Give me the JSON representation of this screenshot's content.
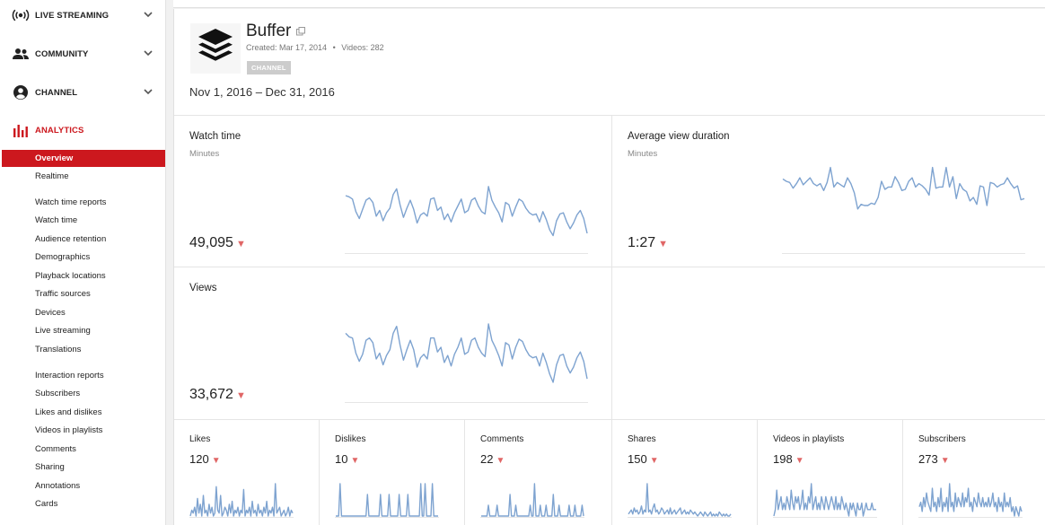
{
  "sidebar": {
    "sections": [
      {
        "label": "LIVE STREAMING",
        "icon": "live-streaming-icon"
      },
      {
        "label": "COMMUNITY",
        "icon": "community-icon"
      },
      {
        "label": "CHANNEL",
        "icon": "channel-icon"
      },
      {
        "label": "ANALYTICS",
        "icon": "analytics-icon",
        "active": true
      }
    ],
    "items": [
      "Overview",
      "Realtime"
    ],
    "watch_time_group": {
      "title": "Watch time reports",
      "items": [
        "Watch time",
        "Audience retention",
        "Demographics",
        "Playback locations",
        "Traffic sources",
        "Devices",
        "Live streaming",
        "Translations"
      ]
    },
    "interaction_group": {
      "title": "Interaction reports",
      "items": [
        "Subscribers",
        "Likes and dislikes",
        "Videos in playlists",
        "Comments",
        "Sharing",
        "Annotations",
        "Cards"
      ]
    }
  },
  "channel": {
    "name": "Buffer",
    "created": "Created: Mar 17, 2014",
    "separator": "•",
    "videos": "Videos: 282",
    "badge": "CHANNEL"
  },
  "date_range": "Nov 1, 2016 – Dec 31, 2016",
  "metrics": {
    "watch_time": {
      "title": "Watch time",
      "sub": "Minutes",
      "value": "49,095",
      "trend": "down",
      "series": [
        44,
        43,
        41,
        30,
        24,
        32,
        40,
        42,
        38,
        26,
        31,
        22,
        29,
        33,
        45,
        50,
        36,
        25,
        33,
        40,
        32,
        20,
        27,
        29,
        26,
        41,
        42,
        31,
        34,
        23,
        28,
        21,
        29,
        35,
        41,
        29,
        31,
        40,
        42,
        35,
        30,
        28,
        52,
        40,
        34,
        29,
        21,
        38,
        36,
        26,
        34,
        41,
        39,
        33,
        29,
        27,
        28,
        21,
        30,
        23,
        14,
        9,
        22,
        28,
        29,
        21,
        15,
        20,
        27,
        31,
        24,
        11
      ]
    },
    "avg_view_duration": {
      "title": "Average view duration",
      "sub": "Minutes",
      "value": "1:27",
      "trend": "down",
      "series": [
        60,
        58,
        57,
        52,
        56,
        61,
        55,
        58,
        61,
        56,
        54,
        56,
        50,
        57,
        70,
        53,
        57,
        55,
        53,
        61,
        56,
        48,
        34,
        38,
        37,
        37,
        39,
        38,
        44,
        58,
        51,
        53,
        53,
        62,
        57,
        50,
        51,
        58,
        61,
        53,
        56,
        54,
        51,
        46,
        70,
        52,
        53,
        53,
        70,
        53,
        62,
        43,
        56,
        51,
        49,
        41,
        44,
        38,
        54,
        53,
        37,
        57,
        56,
        53,
        55,
        56,
        61,
        56,
        52,
        54,
        42,
        43
      ]
    },
    "views": {
      "title": "Views",
      "sub": "",
      "value": "33,672",
      "trend": "down",
      "series": [
        52,
        49,
        48,
        35,
        28,
        34,
        46,
        48,
        44,
        30,
        35,
        25,
        33,
        38,
        52,
        58,
        42,
        29,
        38,
        46,
        38,
        23,
        31,
        34,
        30,
        48,
        48,
        36,
        40,
        27,
        33,
        24,
        34,
        40,
        48,
        34,
        36,
        46,
        48,
        40,
        35,
        32,
        60,
        46,
        40,
        33,
        24,
        44,
        42,
        30,
        40,
        47,
        45,
        38,
        33,
        31,
        32,
        24,
        35,
        27,
        17,
        10,
        25,
        33,
        34,
        24,
        18,
        23,
        31,
        36,
        28,
        13
      ]
    }
  },
  "small_metrics": [
    {
      "title": "Likes",
      "value": "120",
      "trend": "down",
      "series": [
        2,
        4,
        3,
        5,
        2,
        8,
        3,
        6,
        2,
        9,
        3,
        4,
        2,
        6,
        3,
        5,
        2,
        3,
        12,
        4,
        3,
        9,
        2,
        3,
        5,
        4,
        2,
        6,
        3,
        7,
        2,
        4,
        3,
        5,
        2,
        4,
        3,
        11,
        2,
        4,
        3,
        5,
        2,
        7,
        3,
        4,
        2,
        6,
        3,
        4,
        2,
        5,
        3,
        7,
        2,
        4,
        3,
        5,
        2,
        13,
        3,
        4,
        5,
        2,
        3,
        4,
        2,
        3,
        5,
        2,
        4,
        3
      ]
    },
    {
      "title": "Dislikes",
      "value": "10",
      "trend": "down",
      "series": [
        0,
        0,
        0,
        3,
        0,
        0,
        0,
        0,
        0,
        0,
        0,
        0,
        0,
        0,
        0,
        0,
        0,
        0,
        0,
        0,
        0,
        0,
        2,
        0,
        0,
        0,
        0,
        0,
        0,
        0,
        0,
        2,
        0,
        0,
        0,
        0,
        0,
        2,
        0,
        0,
        0,
        0,
        0,
        0,
        2,
        0,
        0,
        0,
        0,
        0,
        2,
        0,
        0,
        0,
        0,
        0,
        0,
        0,
        0,
        3,
        0,
        0,
        3,
        0,
        0,
        0,
        0,
        3,
        0,
        0,
        0,
        0
      ]
    },
    {
      "title": "Comments",
      "value": "22",
      "trend": "down",
      "series": [
        0,
        0,
        0,
        0,
        0,
        1,
        0,
        0,
        0,
        0,
        0,
        1,
        0,
        0,
        0,
        0,
        0,
        0,
        0,
        0,
        2,
        0,
        0,
        0,
        1,
        0,
        0,
        0,
        0,
        0,
        0,
        0,
        0,
        0,
        1,
        0,
        0,
        3,
        0,
        0,
        0,
        1,
        0,
        0,
        0,
        1,
        0,
        0,
        0,
        0,
        2,
        0,
        0,
        0,
        1,
        0,
        0,
        0,
        0,
        0,
        0,
        1,
        0,
        0,
        0,
        1,
        0,
        0,
        0,
        0,
        1,
        0
      ]
    },
    {
      "title": "Shares",
      "value": "150",
      "trend": "down",
      "series": [
        3,
        4,
        5,
        3,
        6,
        4,
        5,
        3,
        4,
        7,
        3,
        5,
        4,
        18,
        4,
        5,
        3,
        6,
        8,
        4,
        5,
        3,
        4,
        6,
        5,
        3,
        4,
        5,
        3,
        6,
        3,
        4,
        5,
        3,
        4,
        5,
        6,
        3,
        4,
        5,
        3,
        4,
        3,
        5,
        4,
        3,
        4,
        3,
        2,
        3,
        4,
        3,
        2,
        4,
        3,
        2,
        3,
        4,
        2,
        3,
        2,
        3,
        2,
        4,
        3,
        2,
        3,
        2,
        3,
        2,
        2,
        3
      ]
    },
    {
      "title": "Videos in playlists",
      "value": "198",
      "trend": "down",
      "series": [
        4,
        5,
        8,
        5,
        6,
        7,
        5,
        6,
        5,
        7,
        6,
        5,
        8,
        6,
        5,
        7,
        6,
        7,
        5,
        6,
        8,
        5,
        6,
        5,
        7,
        6,
        9,
        5,
        6,
        7,
        5,
        6,
        5,
        7,
        6,
        5,
        7,
        6,
        5,
        6,
        7,
        6,
        5,
        7,
        5,
        6,
        5,
        7,
        6,
        5,
        6,
        5,
        4,
        6,
        5,
        6,
        5,
        4,
        6,
        5,
        5,
        6,
        4,
        5,
        6,
        5,
        5,
        5,
        6,
        5,
        5,
        5
      ]
    },
    {
      "title": "Subscribers",
      "value": "273",
      "trend": "down",
      "series": [
        5,
        6,
        4,
        7,
        5,
        8,
        6,
        5,
        4,
        9,
        5,
        6,
        4,
        7,
        5,
        9,
        4,
        6,
        5,
        7,
        4,
        10,
        5,
        6,
        4,
        8,
        5,
        7,
        6,
        5,
        8,
        5,
        7,
        6,
        9,
        5,
        6,
        4,
        7,
        6,
        5,
        8,
        6,
        5,
        7,
        5,
        6,
        5,
        7,
        5,
        6,
        8,
        5,
        6,
        4,
        7,
        5,
        6,
        4,
        8,
        5,
        6,
        5,
        7,
        4,
        5,
        3,
        5,
        4,
        3,
        5,
        4
      ]
    }
  ],
  "colors": {
    "accent": "#cc181e",
    "line": "#7ea3d0",
    "down": "#e06666"
  }
}
